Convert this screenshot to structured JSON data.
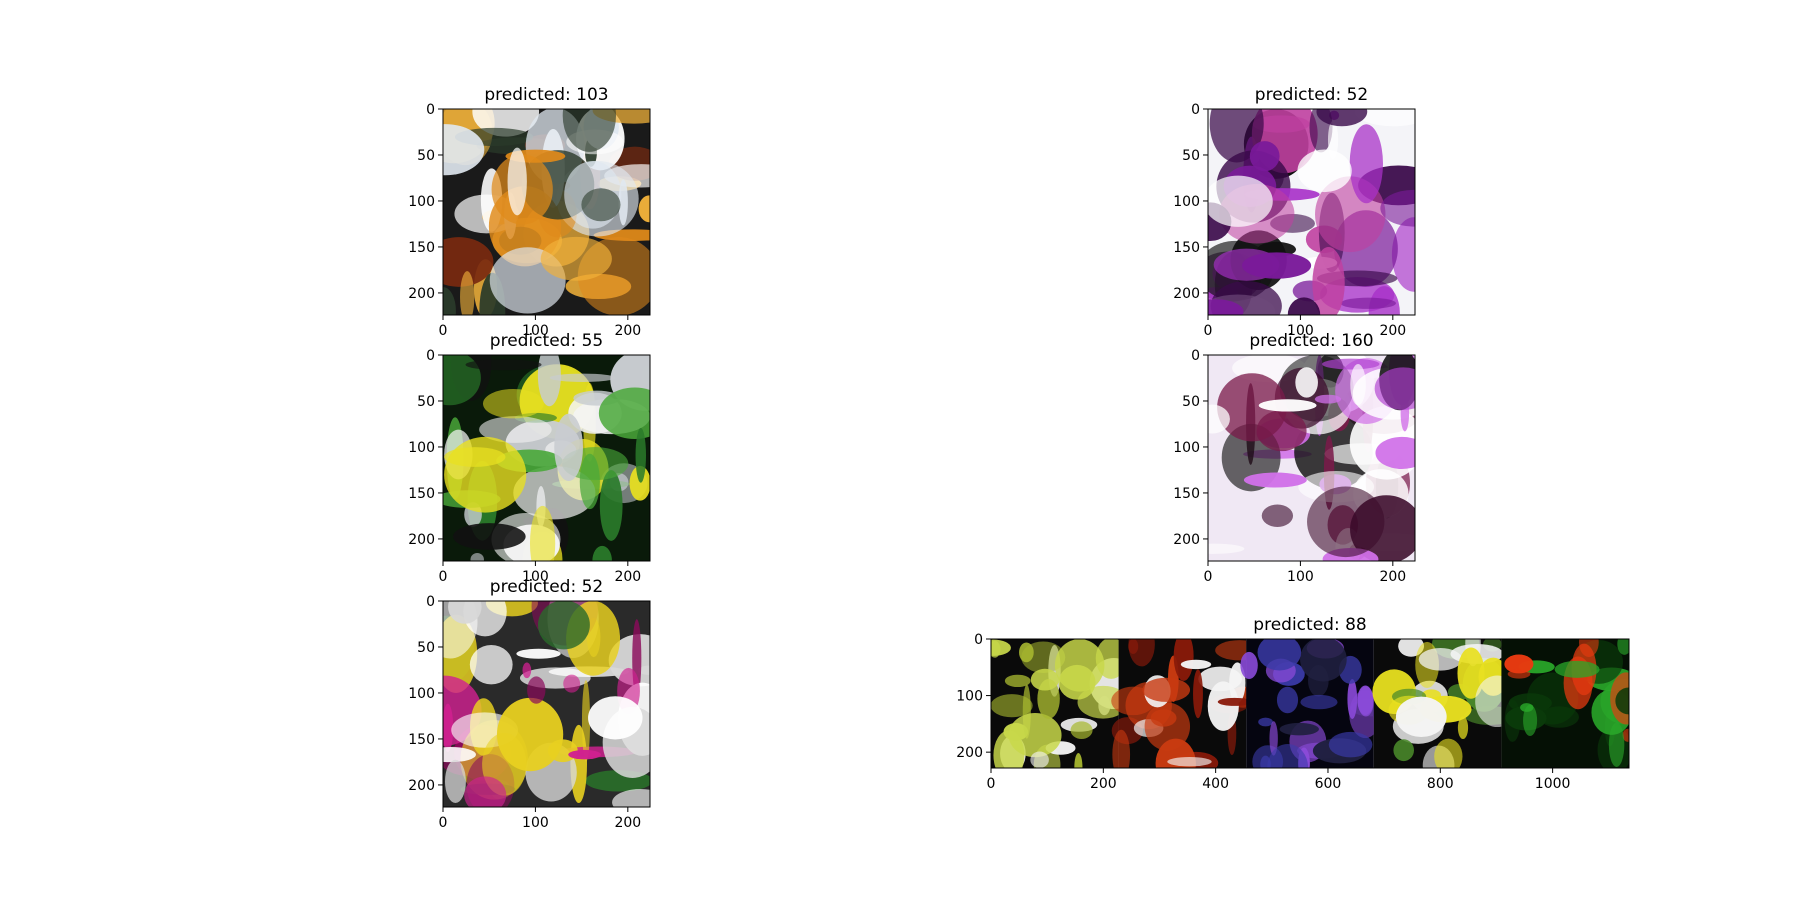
{
  "chart_data": [
    {
      "type": "image",
      "title": "predicted: 103",
      "xlim": [
        0,
        224
      ],
      "ylim": [
        224,
        0
      ],
      "x_ticks": [
        0,
        100,
        200
      ],
      "y_ticks": [
        0,
        50,
        100,
        150,
        200
      ],
      "x_tick_labels": [
        "0",
        "100",
        "200"
      ],
      "y_tick_labels": [
        "0",
        "50",
        "100",
        "150",
        "200"
      ],
      "image_description": "orange spotted orchid over metal grid",
      "palette": [
        "#1a1a1a",
        "#e0e8f0",
        "#e08a1a",
        "#f2b23a",
        "#7a2a10",
        "#ffffff",
        "#2a3a2a"
      ]
    },
    {
      "type": "image",
      "title": "predicted: 52",
      "xlim": [
        0,
        224
      ],
      "ylim": [
        224,
        0
      ],
      "x_ticks": [
        0,
        100,
        200
      ],
      "y_ticks": [
        0,
        50,
        100,
        150,
        200
      ],
      "x_tick_labels": [
        "0",
        "100",
        "200"
      ],
      "y_tick_labels": [
        "0",
        "50",
        "100",
        "150",
        "200"
      ],
      "image_description": "purple orchid against light background",
      "palette": [
        "#f4f4f8",
        "#7a1a9a",
        "#a830c8",
        "#3a0a4a",
        "#101010",
        "#ffffff",
        "#c040a0"
      ]
    },
    {
      "type": "image",
      "title": "predicted: 55",
      "xlim": [
        0,
        224
      ],
      "ylim": [
        224,
        0
      ],
      "x_ticks": [
        0,
        100,
        200
      ],
      "y_ticks": [
        0,
        50,
        100,
        150,
        200
      ],
      "x_tick_labels": [
        "0",
        "100",
        "200"
      ],
      "y_tick_labels": [
        "0",
        "50",
        "100",
        "150",
        "200"
      ],
      "image_description": "green leaves and white orchids with grid",
      "palette": [
        "#0a1a0a",
        "#c8ccd0",
        "#2a7a2a",
        "#4aa83a",
        "#f4f4f4",
        "#e8e020",
        "#111111"
      ]
    },
    {
      "type": "image",
      "title": "predicted: 160",
      "xlim": [
        0,
        224
      ],
      "ylim": [
        224,
        0
      ],
      "x_ticks": [
        0,
        100,
        200
      ],
      "y_ticks": [
        0,
        50,
        100,
        150,
        200
      ],
      "x_tick_labels": [
        "0",
        "100",
        "200"
      ],
      "y_tick_labels": [
        "0",
        "50",
        "100",
        "150",
        "200"
      ],
      "image_description": "spotted magenta orchid close-up",
      "palette": [
        "#f0e8f4",
        "#b040d0",
        "#d070e8",
        "#3a0a2a",
        "#101010",
        "#ffffff",
        "#7a1a4a"
      ]
    },
    {
      "type": "image",
      "title": "predicted: 52",
      "xlim": [
        0,
        224
      ],
      "ylim": [
        224,
        0
      ],
      "x_ticks": [
        0,
        100,
        200
      ],
      "y_ticks": [
        0,
        50,
        100,
        150,
        200
      ],
      "x_tick_labels": [
        "0",
        "100",
        "200"
      ],
      "y_tick_labels": [
        "0",
        "50",
        "100",
        "150",
        "200"
      ],
      "image_description": "magenta orchid with yellow buds",
      "palette": [
        "#2a2a2a",
        "#d8d8d8",
        "#8a0a5a",
        "#d02090",
        "#e8d020",
        "#2a6a2a",
        "#ffffff"
      ]
    },
    {
      "type": "image",
      "title": "predicted: 88",
      "xlim": [
        0,
        1136
      ],
      "ylim": [
        228,
        0
      ],
      "x_ticks": [
        0,
        200,
        400,
        600,
        800,
        1000
      ],
      "y_ticks": [
        0,
        100,
        200
      ],
      "x_tick_labels": [
        "0",
        "200",
        "400",
        "600",
        "800",
        "1000"
      ],
      "y_tick_labels": [
        "0",
        "100",
        "200"
      ],
      "image_description": "grid of five orchid images",
      "panels": [
        {
          "palette": [
            "#0a0a0a",
            "#c8d84a",
            "#a8b830",
            "#f0f0f0"
          ]
        },
        {
          "palette": [
            "#0a0a0a",
            "#f4f4f4",
            "#c83a10",
            "#8a1a0a"
          ]
        },
        {
          "palette": [
            "#050510",
            "#3a3aa8",
            "#8a4ad8",
            "#202040"
          ]
        },
        {
          "palette": [
            "#0a0a0a",
            "#f4f4f4",
            "#e8e020",
            "#4a8a2a"
          ]
        },
        {
          "palette": [
            "#051005",
            "#2aa82a",
            "#e83a10",
            "#0a3a0a"
          ]
        }
      ]
    }
  ]
}
